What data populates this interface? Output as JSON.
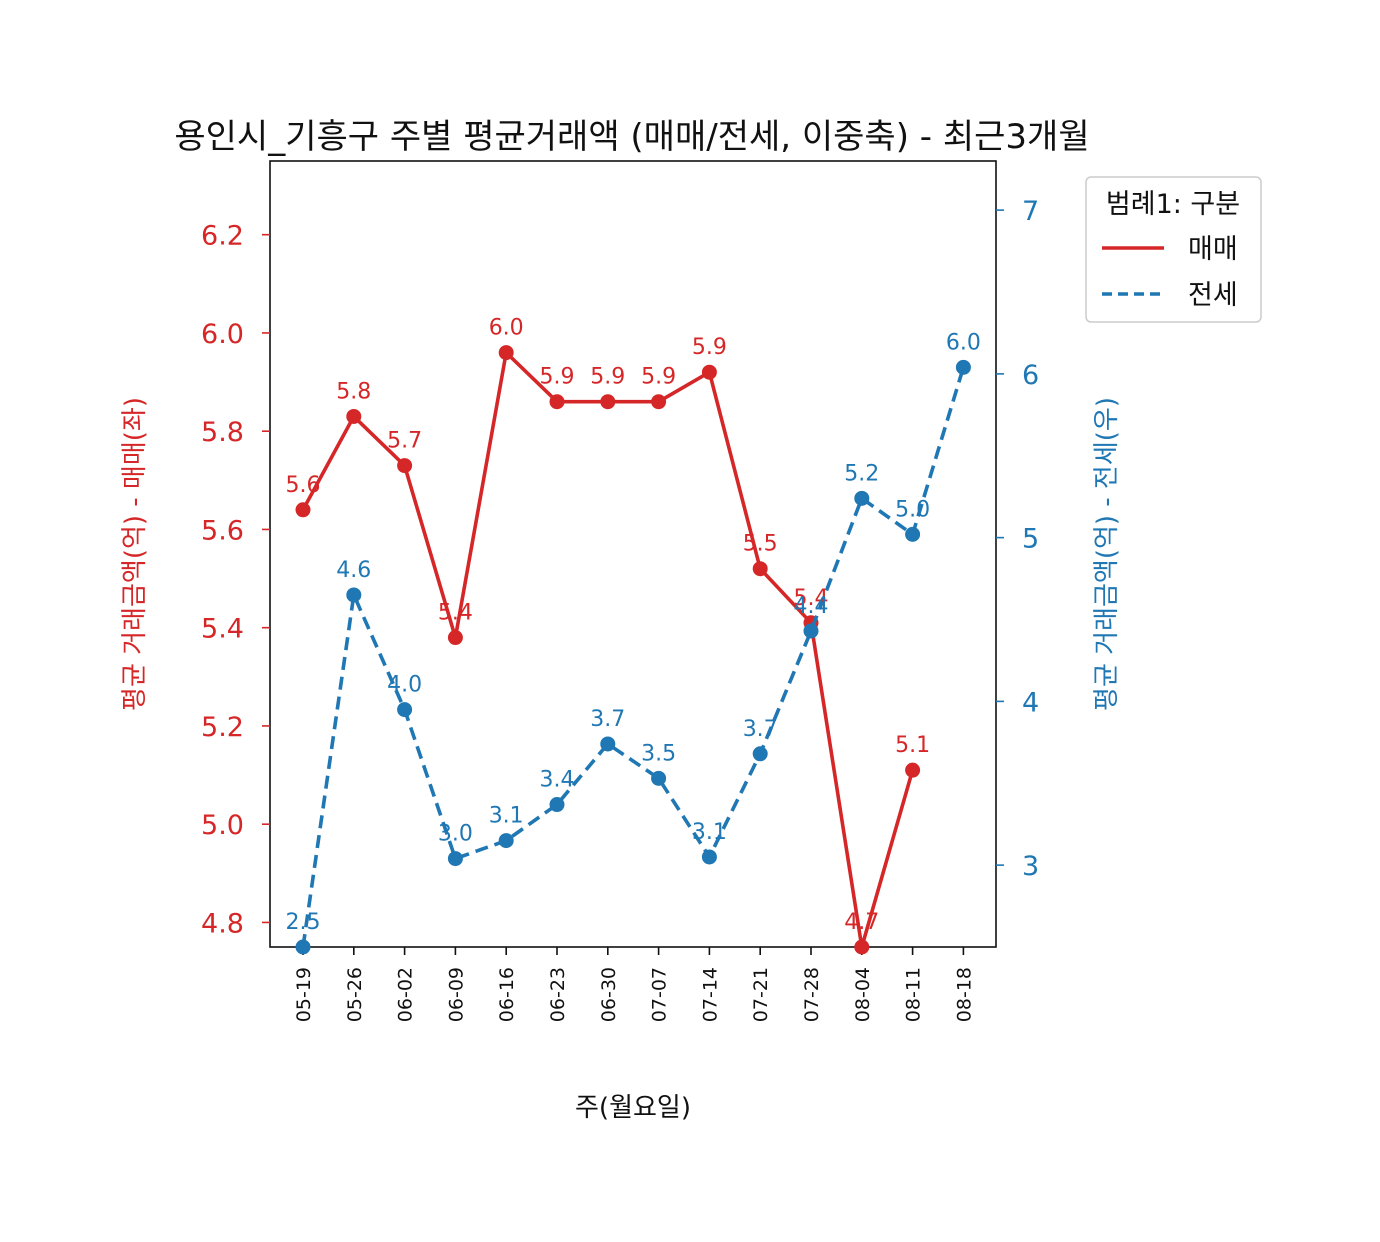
{
  "chart_data": {
    "type": "line",
    "title": "용인시_기흥구 주별 평균거래액 (매매/전세, 이중축) - 최근3개월",
    "xlabel": "주(월요일)",
    "ylabel_left": "평균 거래금액(억) - 매매(좌)",
    "ylabel_right": "평균 거래금액(억) - 전세(우)",
    "categories": [
      "05-19",
      "05-26",
      "06-02",
      "06-09",
      "06-16",
      "06-23",
      "06-30",
      "07-07",
      "07-14",
      "07-21",
      "07-28",
      "08-04",
      "08-11",
      "08-18"
    ],
    "ylim_left": [
      4.75,
      6.35
    ],
    "yticks_left": [
      "4.8",
      "5.0",
      "5.2",
      "5.4",
      "5.6",
      "5.8",
      "6.0",
      "6.2"
    ],
    "ylim_right": [
      2.5,
      7.3
    ],
    "yticks_right": [
      "3",
      "4",
      "5",
      "6",
      "7"
    ],
    "series": [
      {
        "name": "매매",
        "axis": "left",
        "color": "#d62728",
        "style": "solid",
        "values": [
          5.64,
          5.83,
          5.73,
          5.38,
          5.96,
          5.86,
          5.86,
          5.86,
          5.92,
          5.52,
          5.41,
          4.75,
          5.11,
          null
        ],
        "labels": [
          "5.6",
          "5.8",
          "5.7",
          "5.4",
          "6.0",
          "5.9",
          "5.9",
          "5.9",
          "5.9",
          "5.5",
          "5.4",
          "4.7",
          "5.1",
          null
        ]
      },
      {
        "name": "전세",
        "axis": "right",
        "color": "#1f77b4",
        "style": "dashed",
        "values": [
          2.5,
          4.65,
          3.95,
          3.04,
          3.15,
          3.37,
          3.74,
          3.53,
          3.05,
          3.68,
          4.43,
          5.24,
          5.02,
          6.04
        ],
        "labels": [
          "2.5",
          "4.6",
          "4.0",
          "3.0",
          "3.1",
          "3.4",
          "3.7",
          "3.5",
          "3.1",
          "3.7",
          "4.4",
          "5.2",
          "5.0",
          "6.0"
        ]
      }
    ],
    "legend": {
      "title": "범례1: 구분",
      "placement": "upper-right outside",
      "entries": [
        "매매",
        "전세"
      ]
    },
    "grid": false
  }
}
